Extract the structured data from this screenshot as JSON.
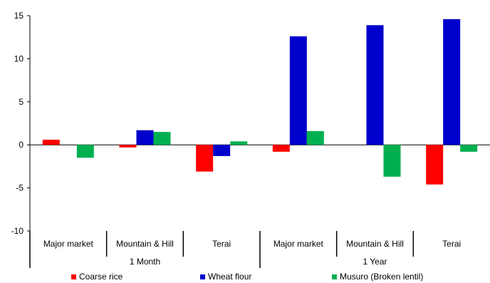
{
  "chart_data": {
    "type": "bar",
    "title": "",
    "xlabel": "",
    "ylabel": "",
    "ylim": [
      -10,
      15
    ],
    "yticks": [
      -10,
      -5,
      0,
      5,
      10,
      15
    ],
    "ytick_labels": [
      "-10",
      "-5",
      "0",
      "5",
      "10",
      "15"
    ],
    "grid": false,
    "legend_position": "bottom",
    "categories": [
      "Major  market",
      "Mountain & Hill",
      "Terai",
      "Major market",
      "Mountain & Hill",
      "Terai"
    ],
    "groups": [
      {
        "label": "1 Month",
        "span": [
          0,
          3
        ]
      },
      {
        "label": "1 Year",
        "span": [
          3,
          6
        ]
      }
    ],
    "series": [
      {
        "name": "Coarse rice",
        "color": "#ff0000",
        "values": [
          0.6,
          -0.3,
          -3.1,
          -0.8,
          0.0,
          -4.6
        ]
      },
      {
        "name": "Wheat flour",
        "color": "#0000cc",
        "values": [
          0.0,
          1.7,
          -1.3,
          12.6,
          13.9,
          14.6
        ]
      },
      {
        "name": "Musuro (Broken lentil)",
        "color": "#00b050",
        "values": [
          -1.5,
          1.5,
          0.4,
          1.6,
          -3.7,
          -0.8
        ]
      }
    ]
  }
}
